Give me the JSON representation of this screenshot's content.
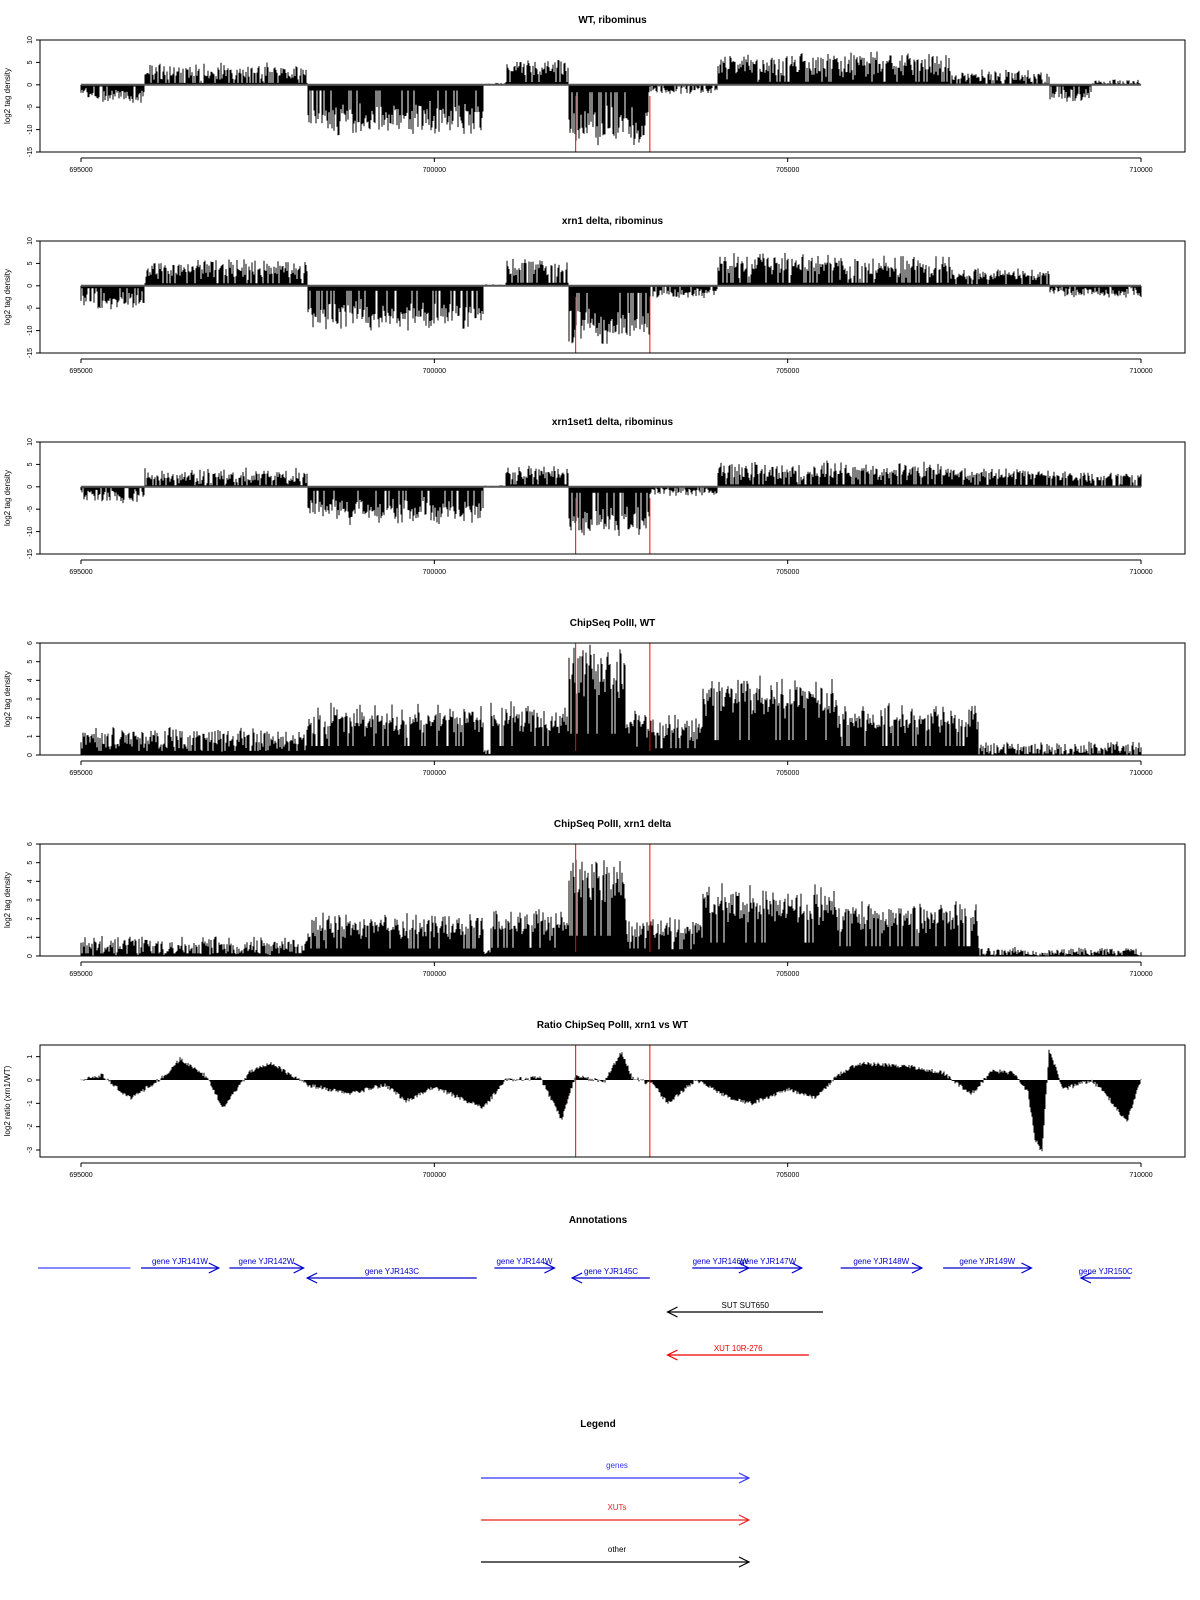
{
  "chart_data": {
    "type": "bar",
    "x_ticks": [
      695000,
      700000,
      705000,
      710000
    ],
    "xlim": [
      695000,
      710000
    ],
    "marker_lines_x": [
      702000,
      703050
    ],
    "marker_color": "#ff0000",
    "panels": [
      {
        "title": "WT, ribominus",
        "ylabel": "log2 tag density",
        "ylim": [
          -15,
          10
        ],
        "y_ticks": [
          -15,
          -10,
          -5,
          0,
          5,
          10
        ],
        "style": "bidirectional",
        "segments": [
          {
            "from": 695000,
            "to": 695900,
            "level": -2.5,
            "amp": 2.5
          },
          {
            "from": 695900,
            "to": 698200,
            "level": 2.8,
            "amp": 3
          },
          {
            "from": 698200,
            "to": 700700,
            "level": -8.5,
            "amp": 3
          },
          {
            "from": 700700,
            "to": 701000,
            "level": 0,
            "amp": 0.6
          },
          {
            "from": 701000,
            "to": 701900,
            "level": 4.2,
            "amp": 2
          },
          {
            "from": 701900,
            "to": 703050,
            "level": -11,
            "amp": 3
          },
          {
            "from": 703050,
            "to": 704000,
            "level": -1,
            "amp": 1.5
          },
          {
            "from": 704000,
            "to": 707300,
            "level": 4.5,
            "amp": 4
          },
          {
            "from": 707300,
            "to": 708700,
            "level": 2,
            "amp": 2
          },
          {
            "from": 708700,
            "to": 709300,
            "level": -2.5,
            "amp": 2
          },
          {
            "from": 709300,
            "to": 710000,
            "level": 0.5,
            "amp": 1
          }
        ]
      },
      {
        "title": "xrn1 delta, ribominus",
        "ylabel": "log2 tag density",
        "ylim": [
          -15,
          10
        ],
        "y_ticks": [
          -15,
          -10,
          -5,
          0,
          5,
          10
        ],
        "style": "bidirectional",
        "segments": [
          {
            "from": 695000,
            "to": 695900,
            "level": -3.5,
            "amp": 2.5
          },
          {
            "from": 695900,
            "to": 698200,
            "level": 3.8,
            "amp": 3
          },
          {
            "from": 698200,
            "to": 700700,
            "level": -7.5,
            "amp": 3
          },
          {
            "from": 700700,
            "to": 701000,
            "level": 0,
            "amp": 0.6
          },
          {
            "from": 701000,
            "to": 701900,
            "level": 4.5,
            "amp": 2
          },
          {
            "from": 701900,
            "to": 703050,
            "level": -10.5,
            "amp": 3
          },
          {
            "from": 703050,
            "to": 704000,
            "level": -1.5,
            "amp": 2
          },
          {
            "from": 704000,
            "to": 707300,
            "level": 4.5,
            "amp": 4
          },
          {
            "from": 707300,
            "to": 708700,
            "level": 2.5,
            "amp": 2
          },
          {
            "from": 708700,
            "to": 710000,
            "level": -1.2,
            "amp": 2
          }
        ]
      },
      {
        "title": "xrn1set1 delta, ribominus",
        "ylabel": "log2 tag density",
        "ylim": [
          -15,
          10
        ],
        "y_ticks": [
          -15,
          -10,
          -5,
          0,
          5,
          10
        ],
        "style": "bidirectional",
        "segments": [
          {
            "from": 695000,
            "to": 695900,
            "level": -2,
            "amp": 2.5
          },
          {
            "from": 695900,
            "to": 698200,
            "level": 2.2,
            "amp": 3
          },
          {
            "from": 698200,
            "to": 700700,
            "level": -6,
            "amp": 3
          },
          {
            "from": 700700,
            "to": 701000,
            "level": 0,
            "amp": 0.6
          },
          {
            "from": 701000,
            "to": 701900,
            "level": 3.5,
            "amp": 2
          },
          {
            "from": 701900,
            "to": 703050,
            "level": -9,
            "amp": 3
          },
          {
            "from": 703050,
            "to": 704000,
            "level": -1,
            "amp": 1.5
          },
          {
            "from": 704000,
            "to": 707300,
            "level": 3.5,
            "amp": 3
          },
          {
            "from": 707300,
            "to": 708700,
            "level": 3,
            "amp": 2
          },
          {
            "from": 708700,
            "to": 710000,
            "level": 2,
            "amp": 2
          }
        ]
      },
      {
        "title": "ChipSeq PolII, WT",
        "ylabel": "log2 tag density",
        "ylim": [
          0,
          6
        ],
        "y_ticks": [
          0,
          1,
          2,
          3,
          4,
          5,
          6
        ],
        "style": "positive",
        "segments": [
          {
            "from": 695000,
            "to": 698200,
            "level": 1.1,
            "amp": 1
          },
          {
            "from": 698200,
            "to": 700700,
            "level": 2.4,
            "amp": 1
          },
          {
            "from": 700700,
            "to": 700800,
            "level": 0.3,
            "amp": 0.2
          },
          {
            "from": 700800,
            "to": 701900,
            "level": 2.4,
            "amp": 1
          },
          {
            "from": 701900,
            "to": 702700,
            "level": 5.7,
            "amp": 0.5
          },
          {
            "from": 702700,
            "to": 703100,
            "level": 2.2,
            "amp": 0.8
          },
          {
            "from": 703100,
            "to": 703800,
            "level": 1.8,
            "amp": 0.8
          },
          {
            "from": 703800,
            "to": 705700,
            "level": 4,
            "amp": 0.8
          },
          {
            "from": 705700,
            "to": 707700,
            "level": 2.4,
            "amp": 0.8
          },
          {
            "from": 707700,
            "to": 710000,
            "level": 0.4,
            "amp": 0.7
          }
        ]
      },
      {
        "title": "ChipSeq PolII, xrn1 delta",
        "ylabel": "log2 tag density",
        "ylim": [
          0,
          6
        ],
        "y_ticks": [
          0,
          1,
          2,
          3,
          4,
          5,
          6
        ],
        "style": "positive",
        "segments": [
          {
            "from": 695000,
            "to": 698200,
            "level": 0.7,
            "amp": 0.8
          },
          {
            "from": 698200,
            "to": 700700,
            "level": 2,
            "amp": 0.8
          },
          {
            "from": 700700,
            "to": 700800,
            "level": 0.3,
            "amp": 0.2
          },
          {
            "from": 700800,
            "to": 701900,
            "level": 2.2,
            "amp": 0.8
          },
          {
            "from": 701900,
            "to": 702700,
            "level": 5.4,
            "amp": 0.5
          },
          {
            "from": 702700,
            "to": 703100,
            "level": 2,
            "amp": 0.8
          },
          {
            "from": 703100,
            "to": 703800,
            "level": 1.8,
            "amp": 0.8
          },
          {
            "from": 703800,
            "to": 705700,
            "level": 3.6,
            "amp": 0.8
          },
          {
            "from": 705700,
            "to": 707700,
            "level": 2.6,
            "amp": 0.8
          },
          {
            "from": 707700,
            "to": 710000,
            "level": 0.3,
            "amp": 0.4
          }
        ]
      },
      {
        "title": "Ratio ChipSeq PolII, xrn1 vs WT",
        "ylabel": "log2 ratio (xrn1/WT)",
        "ylim": [
          -3.3,
          1.5
        ],
        "y_ticks": [
          -3,
          -2,
          -1,
          0,
          1
        ],
        "style": "ratio",
        "curve": [
          [
            695000,
            0
          ],
          [
            695300,
            0.2
          ],
          [
            695700,
            -0.8
          ],
          [
            696200,
            0.2
          ],
          [
            696400,
            0.9
          ],
          [
            696800,
            0.1
          ],
          [
            697000,
            -1.2
          ],
          [
            697400,
            0.4
          ],
          [
            697700,
            0.7
          ],
          [
            698200,
            -0.2
          ],
          [
            698800,
            -0.6
          ],
          [
            699300,
            -0.2
          ],
          [
            699600,
            -0.9
          ],
          [
            700000,
            -0.3
          ],
          [
            700700,
            -1.2
          ],
          [
            701000,
            0
          ],
          [
            701500,
            0.1
          ],
          [
            701800,
            -1.7
          ],
          [
            702000,
            0.2
          ],
          [
            702400,
            -0.1
          ],
          [
            702650,
            1.2
          ],
          [
            702800,
            0.1
          ],
          [
            703100,
            -0.2
          ],
          [
            703300,
            -1
          ],
          [
            703700,
            0
          ],
          [
            704200,
            -0.8
          ],
          [
            704500,
            -1
          ],
          [
            705000,
            -0.4
          ],
          [
            705400,
            -0.8
          ],
          [
            705700,
            0.2
          ],
          [
            706000,
            0.7
          ],
          [
            706700,
            0.6
          ],
          [
            707200,
            0.3
          ],
          [
            707600,
            -0.6
          ],
          [
            707900,
            0.4
          ],
          [
            708200,
            0.3
          ],
          [
            708400,
            -0.5
          ],
          [
            708500,
            -2.5
          ],
          [
            708600,
            -3.1
          ],
          [
            708700,
            1.3
          ],
          [
            708900,
            -0.4
          ],
          [
            709300,
            0
          ],
          [
            709500,
            -0.6
          ],
          [
            709800,
            -1.8
          ],
          [
            710000,
            0
          ]
        ]
      }
    ]
  },
  "annotations": {
    "title": "Annotations",
    "features": [
      {
        "label": "",
        "start": 694100,
        "end": 695700,
        "strand": "none",
        "row": 0,
        "color": "#4444ff"
      },
      {
        "label": "gene YJR141W",
        "start": 695850,
        "end": 696950,
        "strand": "+",
        "row": 0,
        "color": "#0000cc"
      },
      {
        "label": "gene YJR142W",
        "start": 697100,
        "end": 698150,
        "strand": "+",
        "row": 0,
        "color": "#0000cc"
      },
      {
        "label": "gene YJR143C",
        "start": 698200,
        "end": 700600,
        "strand": "-",
        "row": 1,
        "color": "#0000cc"
      },
      {
        "label": "gene YJR144W",
        "start": 700850,
        "end": 701700,
        "strand": "+",
        "row": 0,
        "color": "#0000cc"
      },
      {
        "label": "gene YJR145C",
        "start": 701950,
        "end": 703050,
        "strand": "-",
        "row": 1,
        "color": "#0000cc"
      },
      {
        "label": "gene YJR146W",
        "start": 703650,
        "end": 704450,
        "strand": "+",
        "row": 0,
        "color": "#0000cc"
      },
      {
        "label": "gene YJR147W",
        "start": 704250,
        "end": 705200,
        "strand": "+",
        "row": 0,
        "color": "#0000cc"
      },
      {
        "label": "gene YJR148W",
        "start": 705750,
        "end": 706900,
        "strand": "+",
        "row": 0,
        "color": "#0000cc"
      },
      {
        "label": "gene YJR149W",
        "start": 707200,
        "end": 708450,
        "strand": "+",
        "row": 0,
        "color": "#0000cc"
      },
      {
        "label": "gene YJR150C",
        "start": 709150,
        "end": 709850,
        "strand": "-",
        "row": 1,
        "color": "#0000cc"
      },
      {
        "label": "SUT SUT650",
        "start": 703300,
        "end": 705500,
        "strand": "-",
        "row": 2,
        "color": "#000000"
      },
      {
        "label": "XUT 10R-276",
        "start": 703300,
        "end": 705300,
        "strand": "-",
        "row": 3,
        "color": "#ee0000"
      }
    ]
  },
  "legend": {
    "title": "Legend",
    "items": [
      {
        "label": "genes",
        "color": "#3333ff"
      },
      {
        "label": "XUTs",
        "color": "#ee2222"
      },
      {
        "label": "other",
        "color": "#000000"
      }
    ]
  }
}
